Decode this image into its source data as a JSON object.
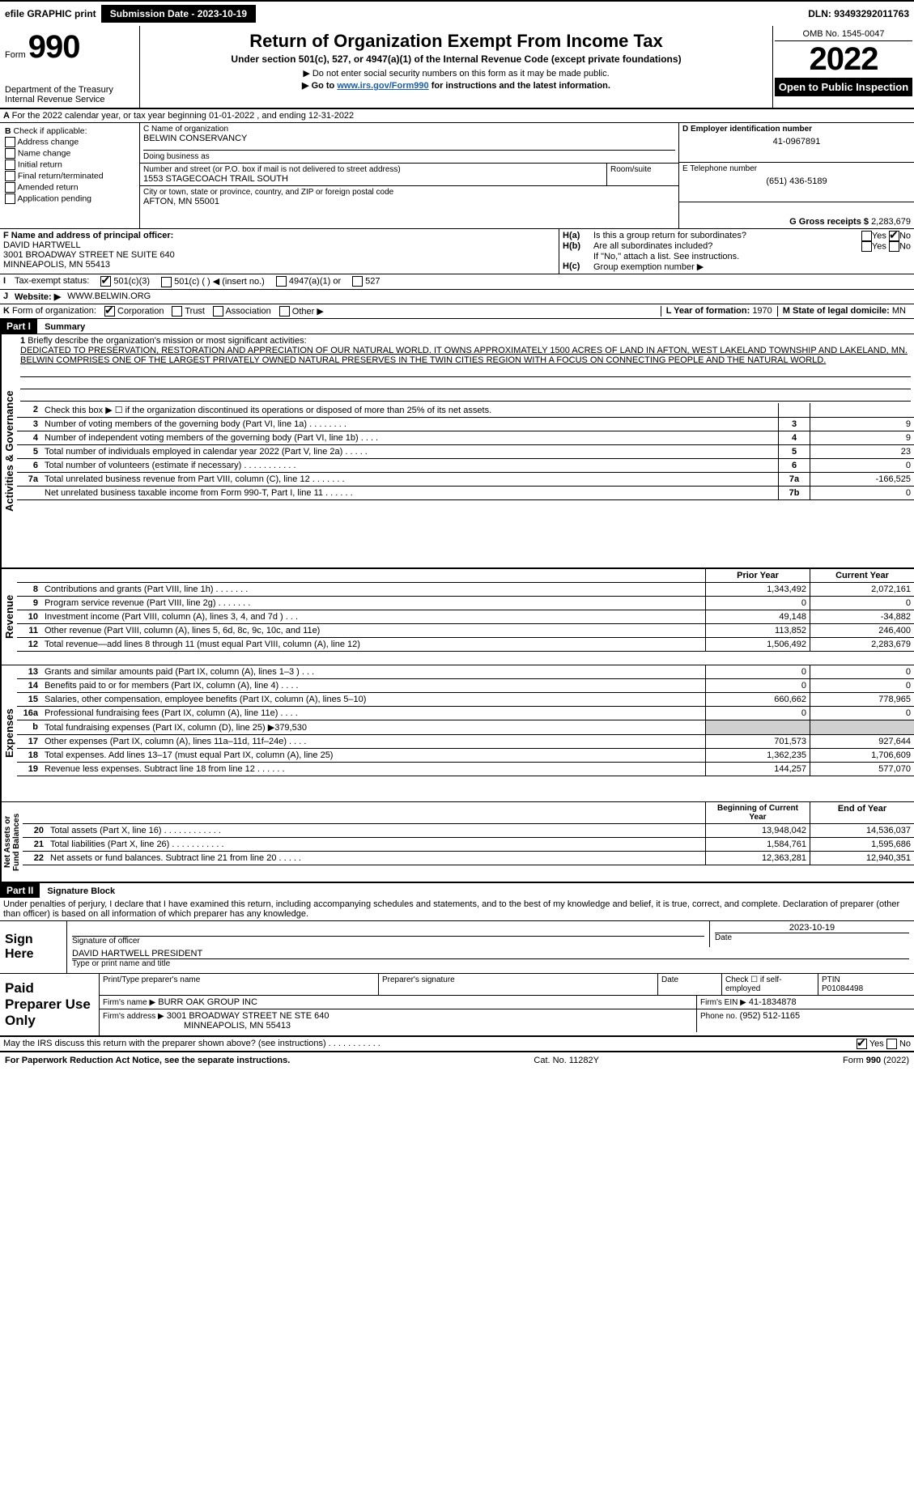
{
  "topbar": {
    "efile_label": "efile GRAPHIC print",
    "submission_btn": "Submission Date - 2023-10-19",
    "dln": "DLN: 93493292011763"
  },
  "header": {
    "form_label": "Form",
    "form_no": "990",
    "dept": "Department of the Treasury",
    "irs": "Internal Revenue Service",
    "title": "Return of Organization Exempt From Income Tax",
    "subtitle": "Under section 501(c), 527, or 4947(a)(1) of the Internal Revenue Code (except private foundations)",
    "note1": "▶ Do not enter social security numbers on this form as it may be made public.",
    "note2_pre": "▶ Go to ",
    "note2_link": "www.irs.gov/Form990",
    "note2_post": " for instructions and the latest information.",
    "omb": "OMB No. 1545-0047",
    "year": "2022",
    "inspection": "Open to Public Inspection"
  },
  "A": {
    "text": "For the 2022 calendar year, or tax year beginning 01-01-2022     , and ending 12-31-2022"
  },
  "B": {
    "title": "Check if applicable:",
    "items": [
      "Address change",
      "Name change",
      "Initial return",
      "Final return/terminated",
      "Amended return",
      "Application pending"
    ]
  },
  "C": {
    "name_label": "C Name of organization",
    "name": "BELWIN CONSERVANCY",
    "dba_label": "Doing business as",
    "addr_label": "Number and street (or P.O. box if mail is not delivered to street address)",
    "room_label": "Room/suite",
    "addr": "1553 STAGECOACH TRAIL SOUTH",
    "city_label": "City or town, state or province, country, and ZIP or foreign postal code",
    "city": "AFTON, MN  55001"
  },
  "D": {
    "label": "D Employer identification number",
    "value": "41-0967891"
  },
  "E": {
    "label": "E Telephone number",
    "value": "(651) 436-5189"
  },
  "G": {
    "label": "G Gross receipts $",
    "value": "2,283,679"
  },
  "F": {
    "label": "F  Name and address of principal officer:",
    "name": "DAVID HARTWELL",
    "addr1": "3001 BROADWAY STREET NE SUITE 640",
    "addr2": "MINNEAPOLIS, MN  55413"
  },
  "H": {
    "a": "Is this a group return for subordinates?",
    "b": "Are all subordinates included?",
    "b_note": "If \"No,\" attach a list. See instructions.",
    "c": "Group exemption number ▶"
  },
  "I": {
    "label": "Tax-exempt status:",
    "opts": [
      "501(c)(3)",
      "501(c) (   ) ◀ (insert no.)",
      "4947(a)(1) or",
      "527"
    ]
  },
  "J": {
    "label": "Website:  ▶",
    "value": "WWW.BELWIN.ORG"
  },
  "K": {
    "label": "Form of organization:",
    "opts": [
      "Corporation",
      "Trust",
      "Association",
      "Other ▶"
    ]
  },
  "L": {
    "label": "L Year of formation:",
    "value": "1970"
  },
  "M": {
    "label": "M State of legal domicile:",
    "value": "MN"
  },
  "part1": {
    "hdr": "Part I",
    "title": "Summary",
    "q1": "Briefly describe the organization's mission or most significant activities:",
    "mission": "DEDICATED TO PRESERVATION, RESTORATION AND APPRECIATION OF OUR NATURAL WORLD. IT OWNS APPROXIMATELY 1500 ACRES OF LAND IN AFTON, WEST LAKELAND TOWNSHIP AND LAKELAND, MN. BELWIN COMPRISES ONE OF THE LARGEST PRIVATELY OWNED NATURAL PRESERVES IN THE TWIN CITIES REGION WITH A FOCUS ON CONNECTING PEOPLE AND THE NATURAL WORLD.",
    "tab_activities": "Activities & Governance",
    "tab_revenue": "Revenue",
    "tab_expenses": "Expenses",
    "tab_net": "Net Assets or Fund Balances",
    "lines_gov": [
      {
        "n": "2",
        "t": "Check this box ▶ ☐  if the organization discontinued its operations or disposed of more than 25% of its net assets.",
        "box": "",
        "v": ""
      },
      {
        "n": "3",
        "t": "Number of voting members of the governing body (Part VI, line 1a)   .    .    .    .    .    .    .    .",
        "box": "3",
        "v": "9"
      },
      {
        "n": "4",
        "t": "Number of independent voting members of the governing body (Part VI, line 1b)    .    .    .    .",
        "box": "4",
        "v": "9"
      },
      {
        "n": "5",
        "t": "Total number of individuals employed in calendar year 2022 (Part V, line 2a)   .    .    .    .    .",
        "box": "5",
        "v": "23"
      },
      {
        "n": "6",
        "t": "Total number of volunteers (estimate if necessary)    .    .    .    .    .    .    .    .    .    .    .",
        "box": "6",
        "v": "0"
      },
      {
        "n": "7a",
        "t": "Total unrelated business revenue from Part VIII, column (C), line 12   .    .    .    .    .    .    .",
        "box": "7a",
        "v": "-166,525"
      },
      {
        "n": "",
        "t": "Net unrelated business taxable income from Form 990-T, Part I, line 11   .    .    .    .    .    .",
        "box": "7b",
        "v": "0"
      }
    ],
    "col_prior": "Prior Year",
    "col_current": "Current Year",
    "lines_rev": [
      {
        "n": "8",
        "t": "Contributions and grants (Part VIII, line 1h)   .    .    .    .    .    .    .",
        "p": "1,343,492",
        "c": "2,072,161"
      },
      {
        "n": "9",
        "t": "Program service revenue (Part VIII, line 2g)   .    .    .    .    .    .    .",
        "p": "0",
        "c": "0"
      },
      {
        "n": "10",
        "t": "Investment income (Part VIII, column (A), lines 3, 4, and 7d )    .    .    .",
        "p": "49,148",
        "c": "-34,882"
      },
      {
        "n": "11",
        "t": "Other revenue (Part VIII, column (A), lines 5, 6d, 8c, 9c, 10c, and 11e)",
        "p": "113,852",
        "c": "246,400"
      },
      {
        "n": "12",
        "t": "Total revenue—add lines 8 through 11 (must equal Part VIII, column (A), line 12)",
        "p": "1,506,492",
        "c": "2,283,679"
      }
    ],
    "lines_exp": [
      {
        "n": "13",
        "t": "Grants and similar amounts paid (Part IX, column (A), lines 1–3 )   .    .    .",
        "p": "0",
        "c": "0"
      },
      {
        "n": "14",
        "t": "Benefits paid to or for members (Part IX, column (A), line 4)   .    .    .    .",
        "p": "0",
        "c": "0"
      },
      {
        "n": "15",
        "t": "Salaries, other compensation, employee benefits (Part IX, column (A), lines 5–10)",
        "p": "660,662",
        "c": "778,965"
      },
      {
        "n": "16a",
        "t": "Professional fundraising fees (Part IX, column (A), line 11e)    .    .    .    .",
        "p": "0",
        "c": "0"
      },
      {
        "n": "b",
        "t": "Total fundraising expenses (Part IX, column (D), line 25) ▶379,530",
        "p": "",
        "c": ""
      },
      {
        "n": "17",
        "t": "Other expenses (Part IX, column (A), lines 11a–11d, 11f–24e)    .    .    .    .",
        "p": "701,573",
        "c": "927,644"
      },
      {
        "n": "18",
        "t": "Total expenses. Add lines 13–17 (must equal Part IX, column (A), line 25)",
        "p": "1,362,235",
        "c": "1,706,609"
      },
      {
        "n": "19",
        "t": "Revenue less expenses. Subtract line 18 from line 12   .    .    .    .    .    .",
        "p": "144,257",
        "c": "577,070"
      }
    ],
    "col_begin": "Beginning of Current Year",
    "col_end": "End of Year",
    "lines_net": [
      {
        "n": "20",
        "t": "Total assets (Part X, line 16)   .    .    .    .    .    .    .    .    .    .    .    .",
        "p": "13,948,042",
        "c": "14,536,037"
      },
      {
        "n": "21",
        "t": "Total liabilities (Part X, line 26)    .    .    .    .    .    .    .    .    .    .    .",
        "p": "1,584,761",
        "c": "1,595,686"
      },
      {
        "n": "22",
        "t": "Net assets or fund balances. Subtract line 21 from line 20   .    .    .    .    .",
        "p": "12,363,281",
        "c": "12,940,351"
      }
    ]
  },
  "part2": {
    "hdr": "Part II",
    "title": "Signature Block",
    "decl": "Under penalties of perjury, I declare that I have examined this return, including accompanying schedules and statements, and to the best of my knowledge and belief, it is true, correct, and complete. Declaration of preparer (other than officer) is based on all information of which preparer has any knowledge."
  },
  "sign": {
    "label": "Sign Here",
    "sig_officer": "Signature of officer",
    "date": "Date",
    "date_val": "2023-10-19",
    "name_title": "DAVID HARTWELL  PRESIDENT",
    "typed": "Type or print name and title"
  },
  "paid": {
    "label": "Paid Preparer Use Only",
    "h1": "Print/Type preparer's name",
    "h2": "Preparer's signature",
    "h3": "Date",
    "h4": "Check ☐ if self-employed",
    "h5": "PTIN",
    "ptin": "P01084498",
    "firm_label": "Firm's name     ▶",
    "firm_name": "BURR OAK GROUP INC",
    "ein_label": "Firm's EIN ▶",
    "ein": "41-1834878",
    "addr_label": "Firm's address ▶",
    "addr1": "3001 BROADWAY STREET NE STE 640",
    "addr2": "MINNEAPOLIS, MN  55413",
    "phone_label": "Phone no.",
    "phone": "(952) 512-1165"
  },
  "last": {
    "q": "May the IRS discuss this return with the preparer shown above? (see instructions)   .    .    .    .    .    .    .    .    .    .    .",
    "yes": "Yes",
    "no": "No"
  },
  "footer": {
    "left": "For Paperwork Reduction Act Notice, see the separate instructions.",
    "mid": "Cat. No. 11282Y",
    "right": "Form 990 (2022)"
  }
}
